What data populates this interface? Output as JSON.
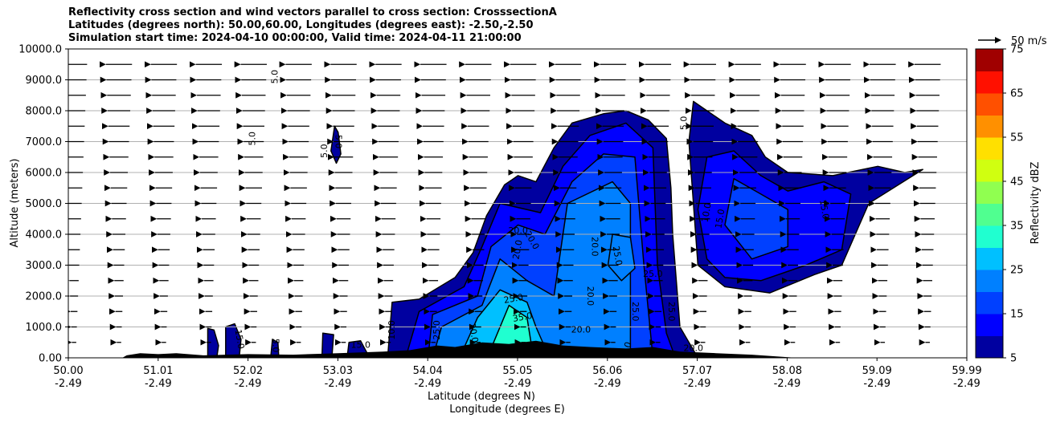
{
  "chart_data": {
    "type": "heatmap",
    "title_lines": [
      "Reflectivity cross section and wind vectors parallel to cross section: CrosssectionA",
      "Latitudes (degrees north): 50.00,60.00, Longitudes (degrees east): -2.50,-2.50",
      "Simulation start time: 2024-04-10 00:00:00, Valid time: 2024-04-11 21:00:00"
    ],
    "ylabel": "Altitude (meters)",
    "xlabel": "Latitude (degrees N)",
    "xlabel2": "Longitude (degrees E)",
    "ylim": [
      0,
      10000
    ],
    "xlim": [
      50.0,
      59.99
    ],
    "y_ticks": [
      "0.00",
      "1000.0",
      "2000.0",
      "3000.0",
      "4000.0",
      "5000.0",
      "6000.0",
      "7000.0",
      "8000.0",
      "9000.0",
      "10000.0"
    ],
    "x_ticks": [
      {
        "lat": "50.00",
        "lon": "-2.49"
      },
      {
        "lat": "51.01",
        "lon": "-2.49"
      },
      {
        "lat": "52.02",
        "lon": "-2.49"
      },
      {
        "lat": "53.03",
        "lon": "-2.49"
      },
      {
        "lat": "54.04",
        "lon": "-2.49"
      },
      {
        "lat": "55.05",
        "lon": "-2.49"
      },
      {
        "lat": "56.06",
        "lon": "-2.49"
      },
      {
        "lat": "57.07",
        "lon": "-2.49"
      },
      {
        "lat": "58.08",
        "lon": "-2.49"
      },
      {
        "lat": "59.09",
        "lon": "-2.49"
      },
      {
        "lat": "59.99",
        "lon": "-2.49"
      }
    ],
    "grid": "horizontal",
    "colorbar": {
      "label": "Reflectivity dBZ",
      "range": [
        5,
        75
      ],
      "step": 5,
      "tick_labels": [
        "5",
        "15",
        "25",
        "35",
        "45",
        "55",
        "65",
        "75"
      ],
      "colors": [
        "#0000a0",
        "#0000ff",
        "#0040ff",
        "#0080ff",
        "#00c0ff",
        "#20ffd0",
        "#50ff90",
        "#90ff50",
        "#d0ff10",
        "#ffe000",
        "#ff9000",
        "#ff5000",
        "#ff1000",
        "#a00000"
      ]
    },
    "wind_reference": {
      "label": "50 m/s"
    },
    "wind_levels_m": [
      500,
      1000,
      1500,
      2000,
      2500,
      3000,
      3500,
      4000,
      4500,
      5000,
      5500,
      6000,
      6500,
      7000,
      7500,
      8000,
      8500,
      9000,
      9500
    ],
    "contour_labels": [
      "5.0",
      "10.0",
      "15.0",
      "20.0",
      "25.0",
      "30.0",
      "35.0"
    ],
    "cells": [
      {
        "name": "cell-small-1",
        "outline": [
          [
            51.55,
            0
          ],
          [
            51.55,
            950
          ],
          [
            51.62,
            900
          ],
          [
            51.67,
            400
          ],
          [
            51.65,
            0
          ]
        ],
        "max_dbz": 10
      },
      {
        "name": "cell-small-2",
        "outline": [
          [
            51.75,
            0
          ],
          [
            51.75,
            1000
          ],
          [
            51.85,
            1100
          ],
          [
            51.92,
            600
          ],
          [
            51.9,
            0
          ]
        ],
        "max_dbz": 10
      },
      {
        "name": "cell-small-3",
        "outline": [
          [
            52.25,
            0
          ],
          [
            52.27,
            600
          ],
          [
            52.33,
            500
          ],
          [
            52.34,
            0
          ]
        ],
        "max_dbz": 5
      },
      {
        "name": "cell-small-4",
        "outline": [
          [
            52.82,
            0
          ],
          [
            52.83,
            800
          ],
          [
            52.95,
            750
          ],
          [
            52.93,
            0
          ]
        ],
        "max_dbz": 10
      },
      {
        "name": "cell-small-5",
        "outline": [
          [
            53.1,
            0
          ],
          [
            53.12,
            500
          ],
          [
            53.25,
            550
          ],
          [
            53.35,
            0
          ]
        ],
        "max_dbz": 10
      },
      {
        "name": "cell-aloft",
        "outline": [
          [
            52.92,
            6700
          ],
          [
            52.96,
            7500
          ],
          [
            53.0,
            7300
          ],
          [
            53.03,
            6600
          ],
          [
            52.98,
            6300
          ]
        ],
        "max_dbz": 5
      },
      {
        "name": "main-outer",
        "outline": [
          [
            53.55,
            0
          ],
          [
            53.6,
            1800
          ],
          [
            53.9,
            1900
          ],
          [
            54.3,
            2600
          ],
          [
            54.5,
            3400
          ],
          [
            54.65,
            4600
          ],
          [
            54.85,
            5600
          ],
          [
            55.0,
            5900
          ],
          [
            55.2,
            5700
          ],
          [
            55.4,
            6800
          ],
          [
            55.6,
            7600
          ],
          [
            55.95,
            7900
          ],
          [
            56.2,
            8000
          ],
          [
            56.45,
            7700
          ],
          [
            56.65,
            7100
          ],
          [
            56.7,
            5500
          ],
          [
            56.72,
            4000
          ],
          [
            56.8,
            1000
          ],
          [
            57.0,
            0
          ]
        ],
        "max_dbz": 10
      },
      {
        "name": "main-15",
        "outline": [
          [
            53.75,
            0
          ],
          [
            53.9,
            1500
          ],
          [
            54.4,
            2300
          ],
          [
            54.6,
            3600
          ],
          [
            54.8,
            5000
          ],
          [
            55.25,
            4700
          ],
          [
            55.5,
            6200
          ],
          [
            55.8,
            7200
          ],
          [
            56.2,
            7600
          ],
          [
            56.5,
            6800
          ],
          [
            56.55,
            3000
          ],
          [
            56.65,
            800
          ],
          [
            56.75,
            0
          ]
        ],
        "max_dbz": 15
      },
      {
        "name": "main-20",
        "outline": [
          [
            54.0,
            0
          ],
          [
            54.05,
            1400
          ],
          [
            54.55,
            2000
          ],
          [
            54.7,
            3600
          ],
          [
            55.0,
            4300
          ],
          [
            55.3,
            4000
          ],
          [
            55.6,
            5700
          ],
          [
            55.95,
            6600
          ],
          [
            56.3,
            6500
          ],
          [
            56.4,
            3000
          ],
          [
            56.5,
            0
          ]
        ],
        "max_dbz": 20
      },
      {
        "name": "main-25",
        "outline": [
          [
            54.05,
            0
          ],
          [
            54.15,
            1000
          ],
          [
            54.6,
            1700
          ],
          [
            54.8,
            3200
          ],
          [
            55.1,
            2500
          ],
          [
            55.4,
            2000
          ],
          [
            55.55,
            5000
          ],
          [
            56.05,
            5700
          ],
          [
            56.25,
            5000
          ],
          [
            56.25,
            0
          ]
        ],
        "max_dbz": 25
      },
      {
        "name": "main-30",
        "outline": [
          [
            54.35,
            0
          ],
          [
            54.55,
            1300
          ],
          [
            54.8,
            2200
          ],
          [
            55.1,
            1800
          ],
          [
            55.2,
            1000
          ],
          [
            55.35,
            0
          ]
        ],
        "max_dbz": 30
      },
      {
        "name": "main-35",
        "outline": [
          [
            54.7,
            300
          ],
          [
            54.9,
            1700
          ],
          [
            55.1,
            1300
          ],
          [
            55.15,
            400
          ]
        ],
        "max_dbz": 35
      },
      {
        "name": "core-25-upper",
        "outline": [
          [
            56.0,
            3000
          ],
          [
            56.05,
            4000
          ],
          [
            56.25,
            3900
          ],
          [
            56.3,
            2900
          ],
          [
            56.15,
            2500
          ]
        ],
        "max_dbz": 25
      },
      {
        "name": "east-outer",
        "outline": [
          [
            56.9,
            7000
          ],
          [
            56.95,
            8300
          ],
          [
            57.1,
            8000
          ],
          [
            57.3,
            7600
          ],
          [
            57.6,
            7200
          ],
          [
            57.75,
            6500
          ],
          [
            58.0,
            6000
          ],
          [
            58.5,
            5900
          ],
          [
            59.0,
            6200
          ],
          [
            59.3,
            6000
          ],
          [
            59.5,
            6100
          ],
          [
            58.9,
            5000
          ],
          [
            58.6,
            3000
          ],
          [
            58.3,
            2700
          ],
          [
            57.8,
            2100
          ],
          [
            57.3,
            2300
          ],
          [
            57.0,
            3000
          ],
          [
            56.95,
            5000
          ]
        ],
        "max_dbz": 10
      },
      {
        "name": "east-15",
        "outline": [
          [
            57.0,
            4800
          ],
          [
            57.1,
            6500
          ],
          [
            57.4,
            6700
          ],
          [
            57.7,
            5900
          ],
          [
            58.0,
            5400
          ],
          [
            58.4,
            5700
          ],
          [
            58.7,
            5300
          ],
          [
            58.6,
            3500
          ],
          [
            58.2,
            3000
          ],
          [
            57.7,
            2500
          ],
          [
            57.3,
            2600
          ],
          [
            57.1,
            3200
          ]
        ],
        "max_dbz": 15
      },
      {
        "name": "east-20",
        "outline": [
          [
            57.3,
            4300
          ],
          [
            57.4,
            5800
          ],
          [
            57.7,
            5300
          ],
          [
            58.0,
            4800
          ],
          [
            58.0,
            3600
          ],
          [
            57.6,
            3200
          ]
        ],
        "max_dbz": 20
      }
    ],
    "terrain": [
      [
        50.6,
        0
      ],
      [
        50.65,
        80
      ],
      [
        50.8,
        150
      ],
      [
        51.0,
        120
      ],
      [
        51.2,
        150
      ],
      [
        51.5,
        80
      ],
      [
        52.0,
        120
      ],
      [
        52.5,
        100
      ],
      [
        53.0,
        150
      ],
      [
        53.5,
        200
      ],
      [
        53.8,
        250
      ],
      [
        54.1,
        400
      ],
      [
        54.3,
        350
      ],
      [
        54.6,
        500
      ],
      [
        54.9,
        450
      ],
      [
        55.2,
        550
      ],
      [
        55.5,
        400
      ],
      [
        55.8,
        350
      ],
      [
        56.2,
        300
      ],
      [
        56.5,
        350
      ],
      [
        56.8,
        200
      ],
      [
        57.2,
        150
      ],
      [
        57.6,
        100
      ],
      [
        58.1,
        0
      ]
    ]
  }
}
